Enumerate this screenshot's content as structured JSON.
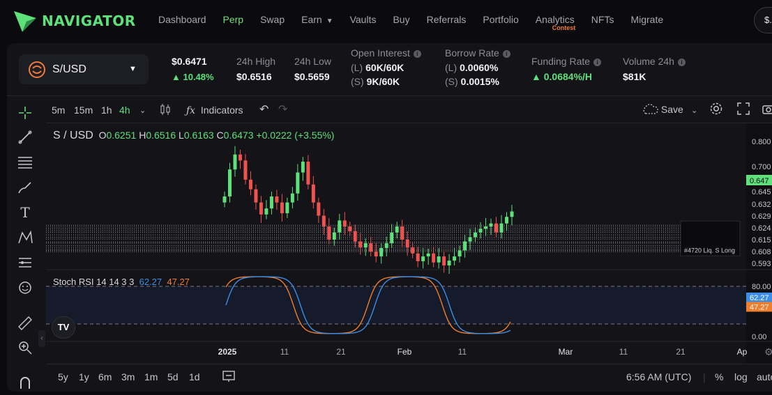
{
  "brand": {
    "name": "NAVIGATOR"
  },
  "nav": {
    "items": [
      {
        "label": "Dashboard"
      },
      {
        "label": "Perp",
        "active": true
      },
      {
        "label": "Swap"
      },
      {
        "label": "Earn",
        "caret": true
      },
      {
        "label": "Vaults"
      },
      {
        "label": "Buy"
      },
      {
        "label": "Referrals"
      },
      {
        "label": "Portfolio"
      },
      {
        "label": "Analytics",
        "badge": "Contest"
      },
      {
        "label": "NFTs"
      },
      {
        "label": "Migrate"
      }
    ],
    "wallet_label": "$..."
  },
  "market": {
    "pair": "S/USD",
    "price": "$0.6471",
    "change": "10.48%",
    "high_label": "24h High",
    "high": "$0.6516",
    "low_label": "24h Low",
    "low": "$0.5659",
    "oi_label": "Open Interest",
    "oi_long_tag": "(L)",
    "oi_long": "60K/60K",
    "oi_short_tag": "(S)",
    "oi_short": "9K/60K",
    "borrow_label": "Borrow Rate",
    "borrow_long_tag": "(L)",
    "borrow_long": "0.0060%",
    "borrow_short_tag": "(S)",
    "borrow_short": "0.0015%",
    "funding_label": "Funding Rate",
    "funding": "0.0684%/H",
    "volume_label": "Volume 24h",
    "volume": "$81K"
  },
  "toolbar": {
    "intervals": [
      "5m",
      "15m",
      "1h",
      "4h"
    ],
    "active_interval": "4h",
    "indicators_label": "Indicators",
    "save_label": "Save"
  },
  "chart": {
    "title_symbol": "S / USD",
    "o_label": "O",
    "o": "0.6251",
    "h_label": "H",
    "h": "0.6516",
    "l_label": "L",
    "l": "0.6163",
    "c_label": "C",
    "c": "0.6473",
    "chg": "+0.0222 (+3.55%)",
    "rsi_label": "Stoch RSI 14 14 3 3",
    "rsi_k": "62.27",
    "rsi_d": "47.27",
    "position_label": "#4720 Liq. S Long"
  },
  "chart_data": {
    "type": "candlestick",
    "title": "S / USD",
    "y_ticks": [
      "0.800",
      "0.700",
      "0.647",
      "0.645",
      "0.632",
      "0.629",
      "0.624",
      "0.615",
      "0.608",
      "0.593"
    ],
    "current_price_tag": "0.647",
    "x_ticks": [
      "2025",
      "11",
      "21",
      "Feb",
      "11",
      "Mar",
      "11",
      "21",
      "Ap"
    ],
    "close_series": [
      0.7,
      0.745,
      0.77,
      0.76,
      0.728,
      0.712,
      0.69,
      0.67,
      0.68,
      0.7,
      0.69,
      0.672,
      0.69,
      0.705,
      0.74,
      0.758,
      0.72,
      0.69,
      0.668,
      0.65,
      0.628,
      0.64,
      0.66,
      0.65,
      0.642,
      0.625,
      0.615,
      0.622,
      0.608,
      0.6,
      0.614,
      0.622,
      0.64,
      0.65,
      0.628,
      0.615,
      0.605,
      0.592,
      0.6,
      0.605,
      0.59,
      0.6,
      0.585,
      0.593,
      0.6,
      0.61,
      0.625,
      0.632,
      0.64,
      0.646,
      0.65,
      0.655,
      0.64,
      0.655,
      0.666,
      0.675
    ],
    "price_lines": [
      0.652,
      0.649,
      0.646,
      0.643,
      0.64,
      0.636,
      0.632,
      0.629,
      0.624,
      0.622,
      0.618,
      0.615,
      0.612,
      0.608
    ],
    "indicator": {
      "name": "Stoch RSI 14 14 3 3",
      "k": 62.27,
      "d": 47.27,
      "levels": [
        80,
        20
      ],
      "y_ticks": [
        "80.00",
        "62.27",
        "47.27",
        "0.00"
      ]
    }
  },
  "bottom": {
    "ranges": [
      "5y",
      "1y",
      "6m",
      "3m",
      "1m",
      "5d",
      "1d"
    ],
    "time": "6:56 AM (UTC)",
    "pct": "%",
    "log": "log",
    "auto": "auto"
  },
  "colors": {
    "accent": "#5ee07a",
    "down": "#ef5350",
    "up": "#5ee07a",
    "rsi_k": "#3d8ee6",
    "rsi_d": "#ef7e2e"
  },
  "icons": [
    "navigator-logo-icon",
    "sonic-token-icon",
    "caret-down-icon",
    "info-icon",
    "crosshair-icon",
    "trendline-icon",
    "fib-icon",
    "brush-icon",
    "text-icon",
    "pattern-icon",
    "measure-icon",
    "emoji-icon",
    "ruler-icon",
    "zoom-icon",
    "magnet-icon",
    "undo-icon",
    "redo-icon",
    "settings-icon",
    "fullscreen-icon",
    "camera-icon",
    "candles-icon",
    "indicators-icon",
    "compare-icon",
    "tradingview-logo-icon"
  ]
}
